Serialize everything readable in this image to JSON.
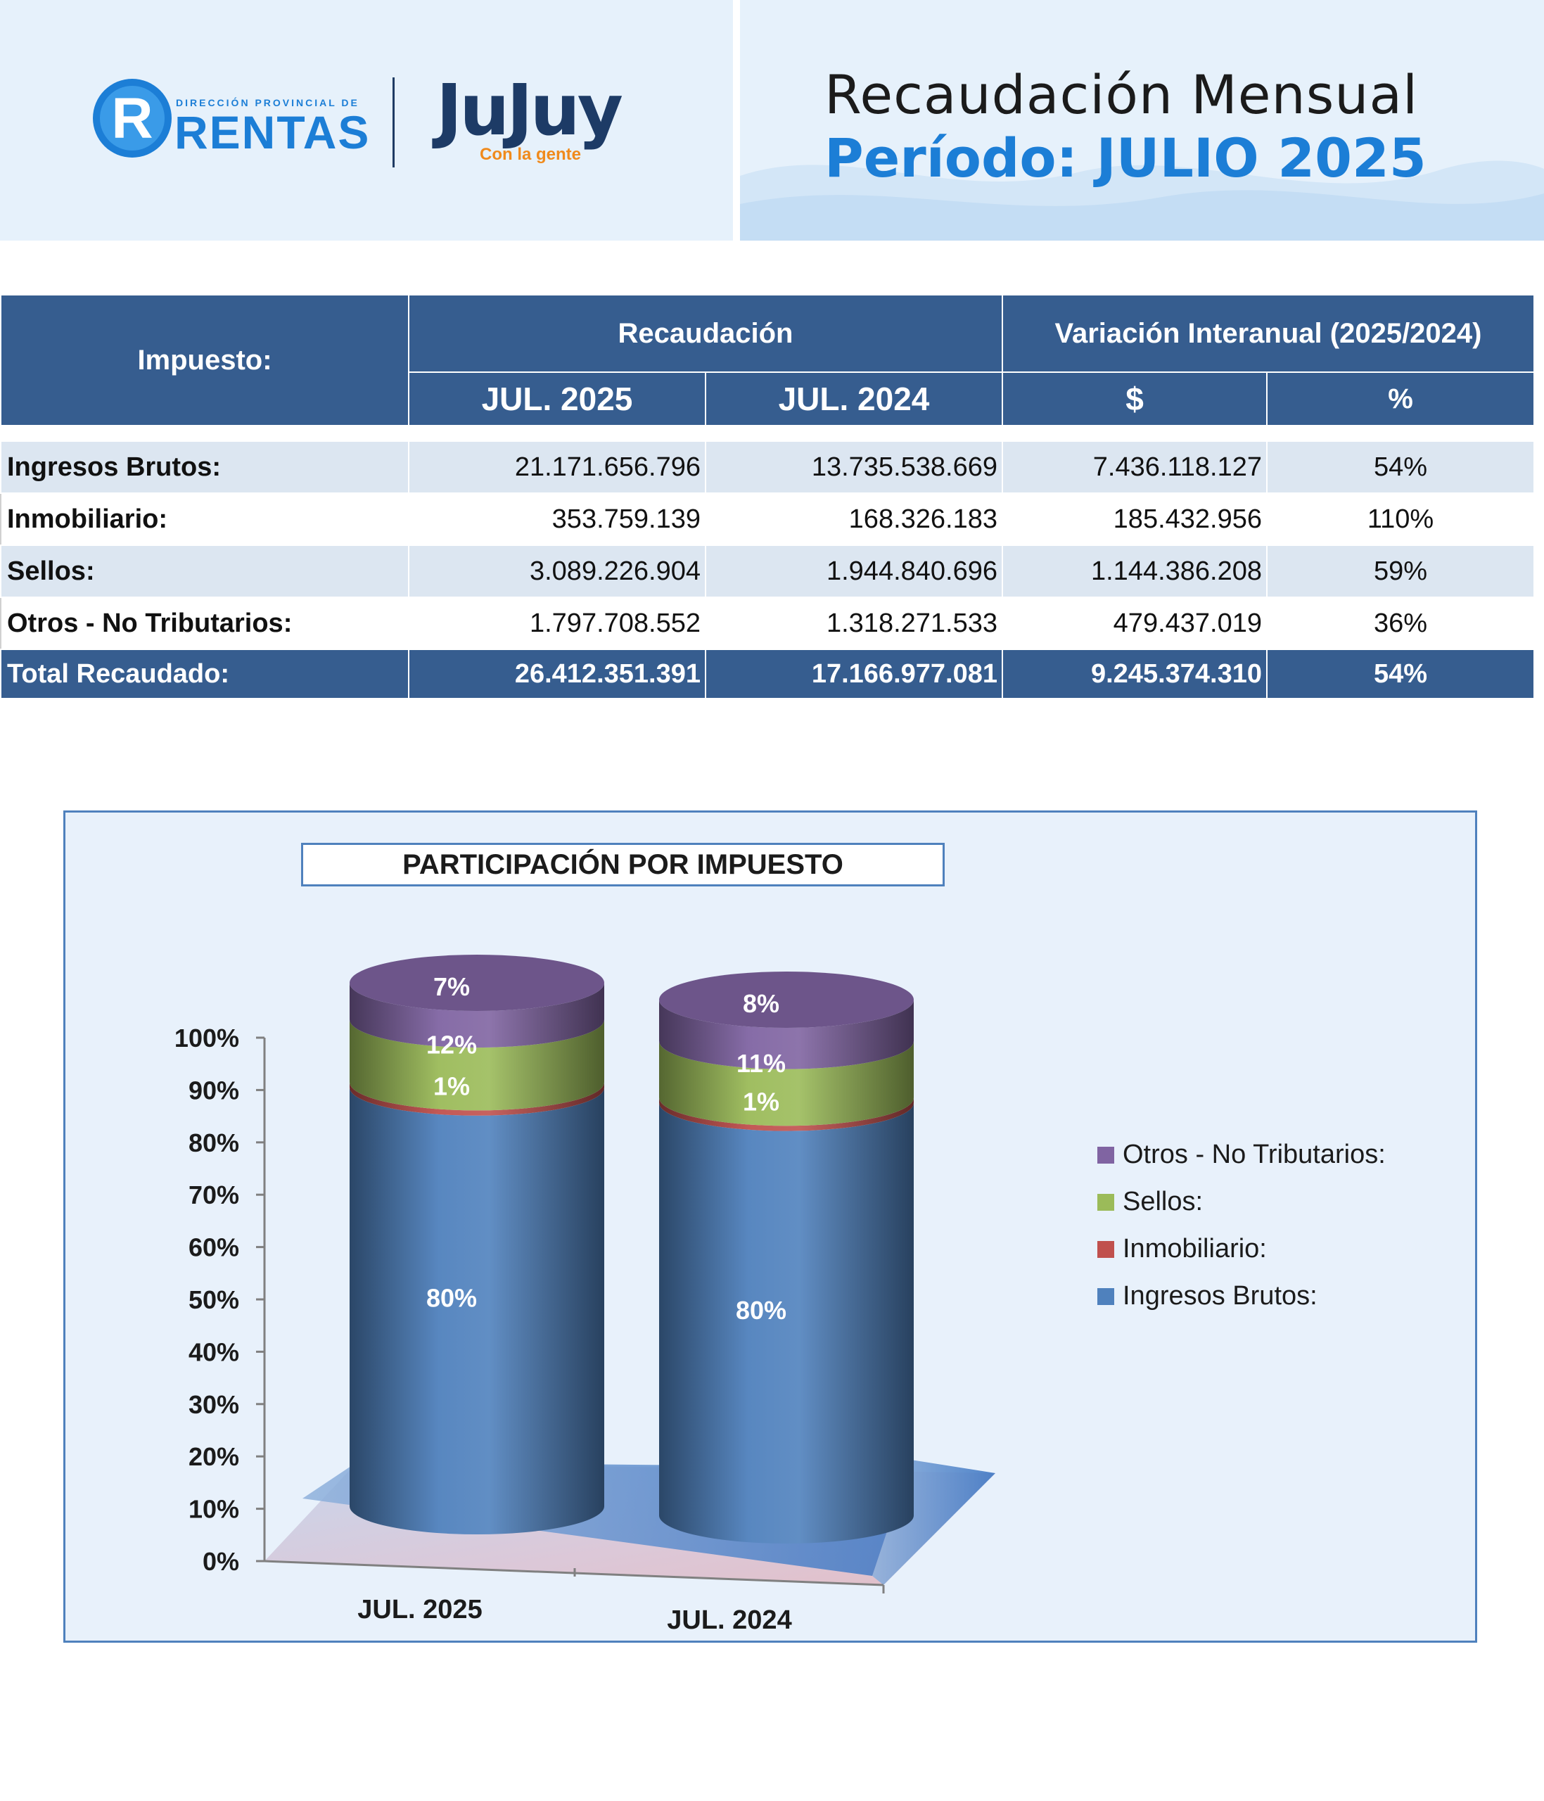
{
  "header": {
    "brand_small": "DIRECCIÓN PROVINCIAL DE",
    "brand": "RENTAS",
    "gov_logo": "JuJuy",
    "gov_tagline": "Con la gente",
    "title": "Recaudación Mensual",
    "period": "Período: JULIO 2025"
  },
  "table": {
    "col_impuesto": "Impuesto:",
    "col_recaudacion": "Recaudación",
    "col_variacion": "Variación Interanual (2025/2024)",
    "sub_2025": "JUL. 2025",
    "sub_2024": "JUL. 2024",
    "sub_abs": "$",
    "sub_pct": "%",
    "rows": [
      {
        "label": "Ingresos Brutos:",
        "v2025": "21.171.656.796",
        "v2024": "13.735.538.669",
        "abs": "7.436.118.127",
        "pct": "54%"
      },
      {
        "label": "Inmobiliario:",
        "v2025": "353.759.139",
        "v2024": "168.326.183",
        "abs": "185.432.956",
        "pct": "110%"
      },
      {
        "label": "Sellos:",
        "v2025": "3.089.226.904",
        "v2024": "1.944.840.696",
        "abs": "1.144.386.208",
        "pct": "59%"
      },
      {
        "label": "Otros - No Tributarios:",
        "v2025": "1.797.708.552",
        "v2024": "1.318.271.533",
        "abs": "479.437.019",
        "pct": "36%"
      }
    ],
    "total": {
      "label": "Total Recaudado:",
      "v2025": "26.412.351.391",
      "v2024": "17.166.977.081",
      "abs": "9.245.374.310",
      "pct": "54%"
    }
  },
  "chart_data": {
    "type": "bar",
    "stacked": true,
    "percent": true,
    "title": "PARTICIPACIÓN POR IMPUESTO",
    "categories": [
      "JUL. 2025",
      "JUL. 2024"
    ],
    "yticks": [
      "0%",
      "10%",
      "20%",
      "30%",
      "40%",
      "50%",
      "60%",
      "70%",
      "80%",
      "90%",
      "100%"
    ],
    "ylim": [
      0,
      100
    ],
    "legend_position": "right",
    "series": [
      {
        "name": "Ingresos Brutos:",
        "values": [
          80,
          80
        ],
        "labels": [
          "80%",
          "80%"
        ],
        "color": "#4f81bd"
      },
      {
        "name": "Inmobiliario:",
        "values": [
          1,
          1
        ],
        "labels": [
          "1%",
          "1%"
        ],
        "color": "#c0504d"
      },
      {
        "name": "Sellos:",
        "values": [
          12,
          11
        ],
        "labels": [
          "12%",
          "11%"
        ],
        "color": "#9bbb59"
      },
      {
        "name": "Otros - No Tributarios:",
        "values": [
          7,
          8
        ],
        "labels": [
          "7%",
          "8%"
        ],
        "color": "#8064a2"
      }
    ]
  }
}
